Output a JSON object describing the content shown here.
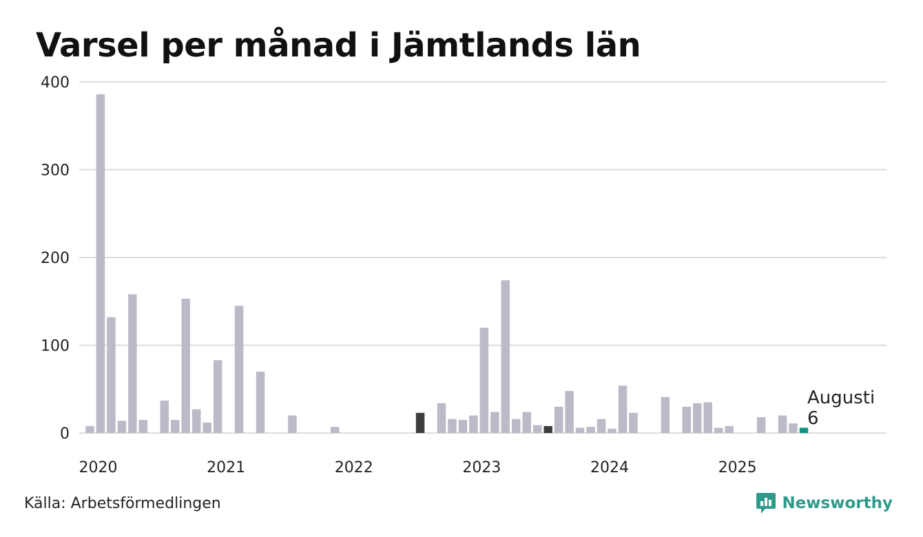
{
  "title": "Varsel per månad i Jämtlands län",
  "source": "Källa: Arbetsförmedlingen",
  "brand": {
    "name": "Newsworthy",
    "icon": "newsworthy-logo-icon"
  },
  "colors": {
    "bar": "#bcbac8",
    "highlight": "#3d3d3d",
    "current": "#119484",
    "grid": "#dcdcdc",
    "text": "#222222"
  },
  "annotation": {
    "label": "Augusti",
    "value": "6"
  },
  "chart_data": {
    "type": "bar",
    "title": "Varsel per månad i Jämtlands län",
    "ylim": [
      0,
      400
    ],
    "yticks": [
      "0",
      "100",
      "200",
      "300",
      "400"
    ],
    "grid": true,
    "xtick_labels": [
      "2020",
      "2021",
      "2022",
      "2023",
      "2024",
      "2025"
    ],
    "start": "2020-01",
    "x": [
      "2020-01",
      "2020-02",
      "2020-03",
      "2020-04",
      "2020-05",
      "2020-06",
      "2020-07",
      "2020-08",
      "2020-09",
      "2020-10",
      "2020-11",
      "2020-12",
      "2021-01",
      "2021-02",
      "2021-03",
      "2021-04",
      "2021-05",
      "2021-06",
      "2021-07",
      "2021-08",
      "2021-09",
      "2021-10",
      "2021-11",
      "2021-12",
      "2022-01",
      "2022-02",
      "2022-03",
      "2022-04",
      "2022-05",
      "2022-06",
      "2022-07",
      "2022-08",
      "2022-09",
      "2022-10",
      "2022-11",
      "2022-12",
      "2023-01",
      "2023-02",
      "2023-03",
      "2023-04",
      "2023-05",
      "2023-06",
      "2023-07",
      "2023-08",
      "2023-09",
      "2023-10",
      "2023-11",
      "2023-12",
      "2024-01",
      "2024-02",
      "2024-03",
      "2024-04",
      "2024-05",
      "2024-06",
      "2024-07",
      "2024-08",
      "2024-09",
      "2024-10",
      "2024-11",
      "2024-12",
      "2025-01",
      "2025-02",
      "2025-03",
      "2025-04",
      "2025-05",
      "2025-06",
      "2025-07",
      "2025-08"
    ],
    "values": [
      8,
      386,
      132,
      14,
      158,
      15,
      0,
      37,
      15,
      153,
      27,
      12,
      83,
      0,
      145,
      0,
      70,
      0,
      0,
      20,
      0,
      0,
      0,
      7,
      0,
      0,
      0,
      0,
      0,
      0,
      0,
      23,
      0,
      34,
      16,
      15,
      20,
      120,
      24,
      174,
      16,
      24,
      9,
      8,
      30,
      48,
      6,
      7,
      16,
      5,
      54,
      23,
      0,
      0,
      41,
      0,
      30,
      34,
      35,
      6,
      8,
      0,
      0,
      18,
      0,
      20,
      11,
      6
    ],
    "highlighted": [
      "2022-08",
      "2023-08"
    ],
    "current": "2025-08"
  }
}
